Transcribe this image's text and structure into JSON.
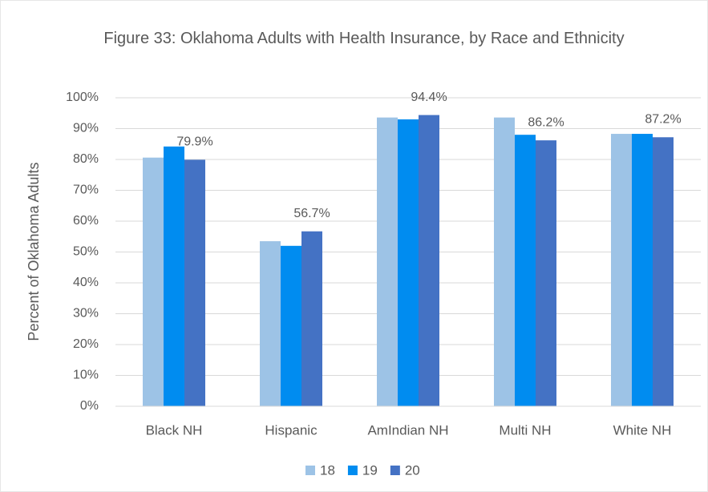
{
  "chart_data": {
    "type": "bar",
    "title": "Figure 33: Oklahoma Adults with Health Insurance, by Race and Ethnicity",
    "y_label": "Percent of Oklahoma Adults",
    "categories": [
      "Black NH",
      "Hispanic",
      "AmIndian NH",
      "Multi NH",
      "White NH"
    ],
    "series": [
      {
        "name": "18",
        "color": "#9dc3e6",
        "values": [
          80.6,
          53.5,
          93.6,
          93.6,
          88.3
        ]
      },
      {
        "name": "19",
        "color": "#008cf0",
        "values": [
          84.2,
          52.0,
          93.0,
          88.0,
          88.3
        ]
      },
      {
        "name": "20",
        "color": "#4472c4",
        "values": [
          79.9,
          56.7,
          94.4,
          86.2,
          87.2
        ],
        "value_labels": [
          "79.9%",
          "56.7%",
          "94.4%",
          "86.2%",
          "87.2%"
        ]
      }
    ],
    "ylim": [
      0,
      100
    ],
    "yticks": [
      {
        "value": 0,
        "label": "0%"
      },
      {
        "value": 10,
        "label": "10%"
      },
      {
        "value": 20,
        "label": "20%"
      },
      {
        "value": 30,
        "label": "30%"
      },
      {
        "value": 40,
        "label": "40%"
      },
      {
        "value": 50,
        "label": "50%"
      },
      {
        "value": 60,
        "label": "60%"
      },
      {
        "value": 70,
        "label": "70%"
      },
      {
        "value": 80,
        "label": "80%"
      },
      {
        "value": 90,
        "label": "90%"
      },
      {
        "value": 100,
        "label": "100%"
      }
    ],
    "grid": true,
    "legend": "bottom"
  }
}
